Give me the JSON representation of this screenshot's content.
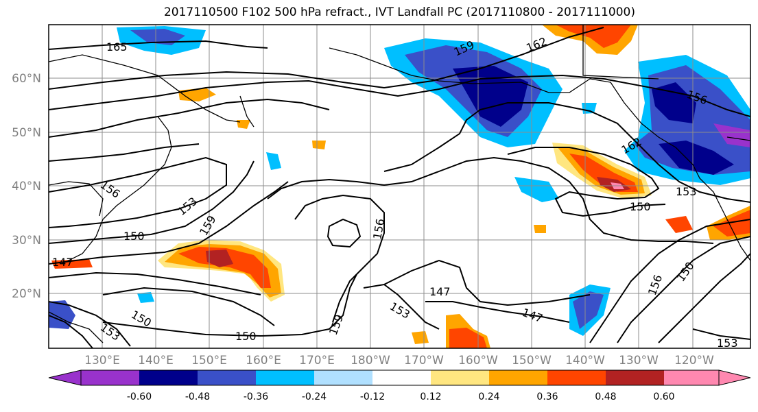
{
  "title": "2017110500 F102 500 hPa refract., IVT Landfall PC (2017110800 - 2017111000)",
  "map": {
    "lon_labels": [
      "130°E",
      "140°E",
      "150°E",
      "160°E",
      "170°E",
      "180°W",
      "170°W",
      "160°W",
      "150°W",
      "140°W",
      "130°W",
      "120°W"
    ],
    "lat_labels": [
      "20°N",
      "30°N",
      "40°N",
      "50°N",
      "60°N"
    ],
    "contour_labels": [
      "165",
      "162",
      "159",
      "156",
      "153",
      "150",
      "147",
      "159",
      "156",
      "153",
      "150",
      "147",
      "150",
      "153",
      "156",
      "159",
      "162",
      "150",
      "153",
      "156",
      "150",
      "147",
      "153"
    ],
    "colors": {
      "coast": "#000000",
      "grid": "#8c8c8c",
      "contour": "#000000"
    }
  },
  "colorbar": {
    "levels": [
      "-0.60",
      "-0.48",
      "-0.36",
      "-0.24",
      "-0.12",
      "0.12",
      "0.24",
      "0.36",
      "0.48",
      "0.60"
    ],
    "colors": [
      "#9932cc",
      "#00008b",
      "#3a50c8",
      "#00bfff",
      "#b0e0ff",
      "#ffffff",
      "#ffe680",
      "#ffa500",
      "#ff4500",
      "#b22222",
      "#ff88b0"
    ]
  }
}
